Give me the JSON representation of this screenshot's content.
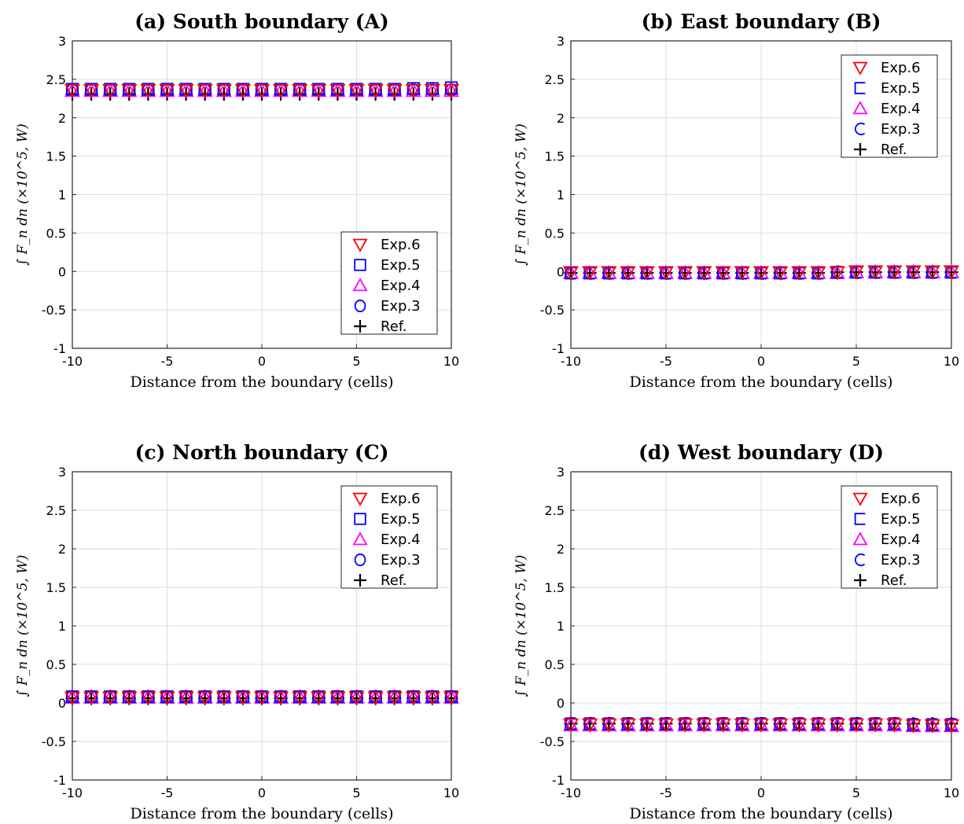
{
  "chart_data": [
    {
      "type": "scatter",
      "title": "(a) South boundary (A)",
      "xlabel": "Distance from the boundary (cells)",
      "ylabel": "∫ F_n dn (×10^5, W)",
      "xlim": [
        -10,
        10
      ],
      "ylim": [
        -1,
        3
      ],
      "xticks": [
        "-10",
        "-5",
        "0",
        "5",
        "10"
      ],
      "yticks": [
        "-1",
        "-0.5",
        "0",
        "0.5",
        "1",
        "1.5",
        "2",
        "2.5",
        "3"
      ],
      "grid": true,
      "legend_position": "lower-right",
      "x": [
        -10,
        -9,
        -8,
        -7,
        -6,
        -5,
        -4,
        -3,
        -2,
        -1,
        0,
        1,
        2,
        3,
        4,
        5,
        6,
        7,
        8,
        9,
        10
      ],
      "series": [
        {
          "name": "Exp.6",
          "marker": "triangle-down",
          "color": "#ff0000",
          "values": [
            2.36,
            2.36,
            2.36,
            2.36,
            2.36,
            2.36,
            2.36,
            2.36,
            2.36,
            2.36,
            2.36,
            2.36,
            2.36,
            2.36,
            2.36,
            2.36,
            2.36,
            2.36,
            2.36,
            2.36,
            2.36
          ]
        },
        {
          "name": "Exp.5",
          "marker": "square",
          "color": "#0000ff",
          "values": [
            2.37,
            2.37,
            2.37,
            2.37,
            2.37,
            2.37,
            2.37,
            2.37,
            2.37,
            2.37,
            2.37,
            2.37,
            2.37,
            2.37,
            2.37,
            2.37,
            2.37,
            2.37,
            2.38,
            2.38,
            2.39
          ]
        },
        {
          "name": "Exp.4",
          "marker": "triangle-up",
          "color": "#ff00ff",
          "values": [
            2.35,
            2.35,
            2.35,
            2.35,
            2.35,
            2.35,
            2.35,
            2.35,
            2.35,
            2.35,
            2.35,
            2.35,
            2.35,
            2.35,
            2.35,
            2.35,
            2.35,
            2.35,
            2.35,
            2.35,
            2.35
          ]
        },
        {
          "name": "Exp.3",
          "marker": "circle",
          "color": "#0000ff",
          "values": [
            2.36,
            2.36,
            2.36,
            2.36,
            2.36,
            2.36,
            2.36,
            2.36,
            2.36,
            2.36,
            2.36,
            2.36,
            2.36,
            2.36,
            2.36,
            2.36,
            2.36,
            2.36,
            2.36,
            2.36,
            2.36
          ]
        },
        {
          "name": "Ref.",
          "marker": "plus",
          "color": "#000000",
          "values": [
            2.31,
            2.31,
            2.31,
            2.31,
            2.31,
            2.31,
            2.31,
            2.31,
            2.31,
            2.31,
            2.31,
            2.31,
            2.31,
            2.31,
            2.31,
            2.31,
            2.31,
            2.31,
            2.31,
            2.31,
            2.31
          ]
        }
      ]
    },
    {
      "type": "scatter",
      "title": "(b) East boundary (B)",
      "xlabel": "Distance from the boundary (cells)",
      "ylabel": "∫ F_n dn (×10^5, W)",
      "xlim": [
        -10,
        10
      ],
      "ylim": [
        -1,
        3
      ],
      "xticks": [
        "-10",
        "-5",
        "0",
        "5",
        "10"
      ],
      "yticks": [
        "-1",
        "-0.5",
        "0",
        "0.5",
        "1",
        "1.5",
        "2",
        "2.5",
        "3"
      ],
      "grid": true,
      "legend_position": "upper-right",
      "x": [
        -10,
        -9,
        -8,
        -7,
        -6,
        -5,
        -4,
        -3,
        -2,
        -1,
        0,
        1,
        2,
        3,
        4,
        5,
        6,
        7,
        8,
        9,
        10
      ],
      "series": [
        {
          "name": "Exp.6",
          "marker": "triangle-down",
          "color": "#ff0000",
          "values": [
            -0.01,
            -0.01,
            -0.01,
            -0.01,
            -0.01,
            -0.01,
            -0.01,
            -0.01,
            -0.01,
            -0.01,
            -0.01,
            -0.01,
            -0.01,
            -0.01,
            -0.01,
            0.0,
            0.0,
            0.0,
            0.0,
            0.0,
            0.0
          ]
        },
        {
          "name": "Exp.5",
          "marker": "square-open",
          "color": "#0000ff",
          "values": [
            -0.02,
            -0.02,
            -0.02,
            -0.02,
            -0.02,
            -0.02,
            -0.02,
            -0.02,
            -0.02,
            -0.02,
            -0.02,
            -0.02,
            -0.02,
            -0.02,
            -0.01,
            -0.01,
            -0.01,
            -0.01,
            -0.01,
            -0.01,
            -0.01
          ]
        },
        {
          "name": "Exp.4",
          "marker": "triangle-up",
          "color": "#ff00ff",
          "values": [
            -0.02,
            -0.02,
            -0.02,
            -0.02,
            -0.02,
            -0.02,
            -0.02,
            -0.02,
            -0.02,
            -0.02,
            -0.02,
            -0.02,
            -0.02,
            -0.02,
            -0.02,
            -0.01,
            -0.01,
            -0.01,
            -0.01,
            -0.01,
            -0.01
          ]
        },
        {
          "name": "Exp.3",
          "marker": "circle-open",
          "color": "#0000ff",
          "values": [
            -0.02,
            -0.02,
            -0.02,
            -0.02,
            -0.02,
            -0.02,
            -0.02,
            -0.02,
            -0.02,
            -0.02,
            -0.02,
            -0.02,
            -0.02,
            -0.02,
            -0.01,
            -0.01,
            -0.01,
            -0.01,
            -0.01,
            -0.01,
            -0.01
          ]
        },
        {
          "name": "Ref.",
          "marker": "plus",
          "color": "#000000",
          "values": [
            -0.02,
            -0.02,
            -0.02,
            -0.02,
            -0.02,
            -0.02,
            -0.02,
            -0.02,
            -0.02,
            -0.02,
            -0.02,
            -0.02,
            -0.02,
            -0.02,
            -0.01,
            -0.01,
            -0.01,
            -0.01,
            -0.01,
            -0.01,
            -0.01
          ]
        }
      ]
    },
    {
      "type": "scatter",
      "title": "(c) North boundary (C)",
      "xlabel": "Distance from the boundary (cells)",
      "ylabel": "∫ F_n dn (×10^5, W)",
      "xlim": [
        -10,
        10
      ],
      "ylim": [
        -1,
        3
      ],
      "xticks": [
        "-10",
        "-5",
        "0",
        "5",
        "10"
      ],
      "yticks": [
        "-1",
        "-0.5",
        "0",
        "0.5",
        "1",
        "1.5",
        "2",
        "2.5",
        "3"
      ],
      "grid": true,
      "legend_position": "upper-right",
      "x": [
        -10,
        -9,
        -8,
        -7,
        -6,
        -5,
        -4,
        -3,
        -2,
        -1,
        0,
        1,
        2,
        3,
        4,
        5,
        6,
        7,
        8,
        9,
        10
      ],
      "series": [
        {
          "name": "Exp.6",
          "marker": "triangle-down",
          "color": "#ff0000",
          "values": [
            0.07,
            0.07,
            0.07,
            0.07,
            0.07,
            0.07,
            0.07,
            0.07,
            0.07,
            0.07,
            0.07,
            0.07,
            0.07,
            0.07,
            0.07,
            0.07,
            0.07,
            0.07,
            0.07,
            0.07,
            0.07
          ]
        },
        {
          "name": "Exp.5",
          "marker": "square",
          "color": "#0000ff",
          "values": [
            0.08,
            0.08,
            0.08,
            0.08,
            0.08,
            0.08,
            0.08,
            0.08,
            0.08,
            0.08,
            0.08,
            0.08,
            0.08,
            0.08,
            0.08,
            0.08,
            0.08,
            0.08,
            0.08,
            0.08,
            0.08
          ]
        },
        {
          "name": "Exp.4",
          "marker": "triangle-up",
          "color": "#ff00ff",
          "values": [
            0.07,
            0.07,
            0.07,
            0.07,
            0.07,
            0.07,
            0.07,
            0.07,
            0.07,
            0.07,
            0.07,
            0.07,
            0.07,
            0.07,
            0.07,
            0.07,
            0.07,
            0.07,
            0.07,
            0.07,
            0.07
          ]
        },
        {
          "name": "Exp.3",
          "marker": "circle",
          "color": "#0000ff",
          "values": [
            0.08,
            0.08,
            0.08,
            0.08,
            0.08,
            0.08,
            0.08,
            0.08,
            0.08,
            0.08,
            0.08,
            0.08,
            0.08,
            0.08,
            0.08,
            0.08,
            0.08,
            0.08,
            0.08,
            0.08,
            0.08
          ]
        },
        {
          "name": "Ref.",
          "marker": "plus",
          "color": "#000000",
          "values": [
            0.06,
            0.06,
            0.06,
            0.06,
            0.06,
            0.06,
            0.06,
            0.06,
            0.06,
            0.06,
            0.06,
            0.06,
            0.06,
            0.06,
            0.06,
            0.06,
            0.06,
            0.06,
            0.06,
            0.06,
            0.06
          ]
        }
      ]
    },
    {
      "type": "scatter",
      "title": "(d) West boundary (D)",
      "xlabel": "Distance from the boundary (cells)",
      "ylabel": "∫ F_n dn (×10^5, W)",
      "xlim": [
        -10,
        10
      ],
      "ylim": [
        -1,
        3
      ],
      "xticks": [
        "-10",
        "-5",
        "0",
        "5",
        "10"
      ],
      "yticks": [
        "-1",
        "-0.5",
        "0",
        "0.5",
        "1",
        "1.5",
        "2",
        "2.5",
        "3"
      ],
      "grid": true,
      "legend_position": "upper-right",
      "x": [
        -10,
        -9,
        -8,
        -7,
        -6,
        -5,
        -4,
        -3,
        -2,
        -1,
        0,
        1,
        2,
        3,
        4,
        5,
        6,
        7,
        8,
        9,
        10
      ],
      "series": [
        {
          "name": "Exp.6",
          "marker": "triangle-down",
          "color": "#ff0000",
          "values": [
            -0.28,
            -0.28,
            -0.28,
            -0.28,
            -0.28,
            -0.28,
            -0.28,
            -0.28,
            -0.28,
            -0.28,
            -0.28,
            -0.28,
            -0.28,
            -0.28,
            -0.28,
            -0.28,
            -0.28,
            -0.28,
            -0.29,
            -0.29,
            -0.29
          ]
        },
        {
          "name": "Exp.5",
          "marker": "square-open",
          "color": "#0000ff",
          "values": [
            -0.27,
            -0.27,
            -0.27,
            -0.27,
            -0.27,
            -0.27,
            -0.27,
            -0.27,
            -0.27,
            -0.27,
            -0.27,
            -0.27,
            -0.27,
            -0.27,
            -0.27,
            -0.27,
            -0.27,
            -0.27,
            -0.28,
            -0.28,
            -0.28
          ]
        },
        {
          "name": "Exp.4",
          "marker": "triangle-up",
          "color": "#ff00ff",
          "values": [
            -0.29,
            -0.29,
            -0.29,
            -0.29,
            -0.29,
            -0.29,
            -0.29,
            -0.29,
            -0.29,
            -0.29,
            -0.29,
            -0.29,
            -0.29,
            -0.29,
            -0.29,
            -0.29,
            -0.29,
            -0.29,
            -0.3,
            -0.3,
            -0.3
          ]
        },
        {
          "name": "Exp.3",
          "marker": "circle-open",
          "color": "#0000ff",
          "values": [
            -0.27,
            -0.27,
            -0.27,
            -0.27,
            -0.27,
            -0.27,
            -0.27,
            -0.27,
            -0.27,
            -0.27,
            -0.27,
            -0.27,
            -0.27,
            -0.27,
            -0.27,
            -0.27,
            -0.27,
            -0.27,
            -0.28,
            -0.28,
            -0.28
          ]
        },
        {
          "name": "Ref.",
          "marker": "plus",
          "color": "#000000",
          "values": [
            -0.27,
            -0.27,
            -0.27,
            -0.27,
            -0.27,
            -0.27,
            -0.27,
            -0.27,
            -0.27,
            -0.27,
            -0.27,
            -0.27,
            -0.27,
            -0.27,
            -0.27,
            -0.27,
            -0.27,
            -0.27,
            -0.27,
            -0.27,
            -0.27
          ]
        }
      ]
    }
  ]
}
